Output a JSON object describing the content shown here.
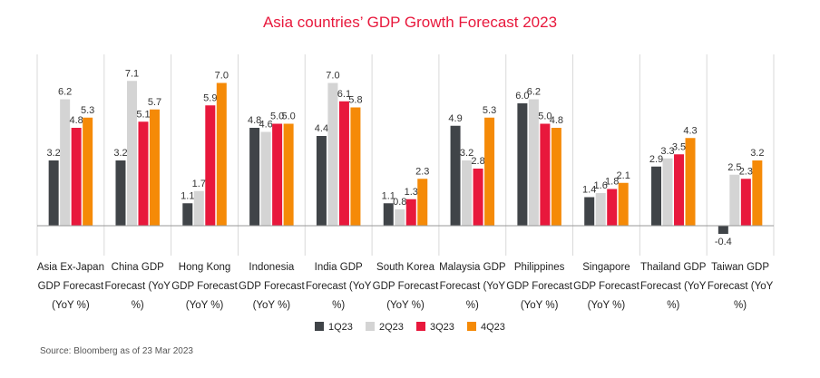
{
  "chart_data": {
    "type": "bar",
    "title": "Asia countries’ GDP Growth Forecast 2023",
    "categories": [
      [
        "Asia Ex-Japan",
        "GDP Forecast",
        "(YoY %)"
      ],
      [
        "China GDP",
        "Forecast (YoY",
        "%)"
      ],
      [
        "Hong Kong",
        "GDP Forecast",
        "(YoY %)"
      ],
      [
        "Indonesia",
        "GDP Forecast",
        "(YoY %)"
      ],
      [
        "India GDP",
        "Forecast (YoY",
        "%)"
      ],
      [
        "South Korea",
        "GDP Forecast",
        "(YoY %)"
      ],
      [
        "Malaysia GDP",
        "Forecast (YoY",
        "%)"
      ],
      [
        "Philippines",
        "GDP Forecast",
        "(YoY %)"
      ],
      [
        "Singapore",
        "GDP Forecast",
        "(YoY %)"
      ],
      [
        "Thailand GDP",
        "Forecast (YoY",
        "%)"
      ],
      [
        "Taiwan GDP",
        "Forecast (YoY",
        "%)"
      ]
    ],
    "series": [
      {
        "name": "1Q23",
        "color": "#404448",
        "values": [
          3.2,
          3.2,
          1.1,
          4.8,
          4.4,
          1.1,
          4.9,
          6.0,
          1.4,
          2.9,
          -0.4
        ]
      },
      {
        "name": "2Q23",
        "color": "#d4d4d4",
        "values": [
          6.2,
          7.1,
          1.7,
          4.6,
          7.0,
          0.8,
          3.2,
          6.2,
          1.6,
          3.3,
          2.5
        ]
      },
      {
        "name": "3Q23",
        "color": "#e8183c",
        "values": [
          4.8,
          5.1,
          5.9,
          5.0,
          6.1,
          1.3,
          2.8,
          5.0,
          1.8,
          3.5,
          2.3
        ]
      },
      {
        "name": "4Q23",
        "color": "#f58a07",
        "values": [
          5.3,
          5.7,
          7.0,
          5.0,
          5.8,
          2.3,
          5.3,
          4.8,
          2.1,
          4.3,
          3.2
        ]
      }
    ],
    "ylim": [
      -0.4,
      7.1
    ],
    "grid": false,
    "legend": "bottom",
    "xlabel": "",
    "ylabel": "",
    "source": "Source: Bloomberg as of 23 Mar 2023"
  },
  "colors": {
    "title": "#e8183c",
    "axis": "#999999",
    "divider": "#d9d9d9"
  }
}
